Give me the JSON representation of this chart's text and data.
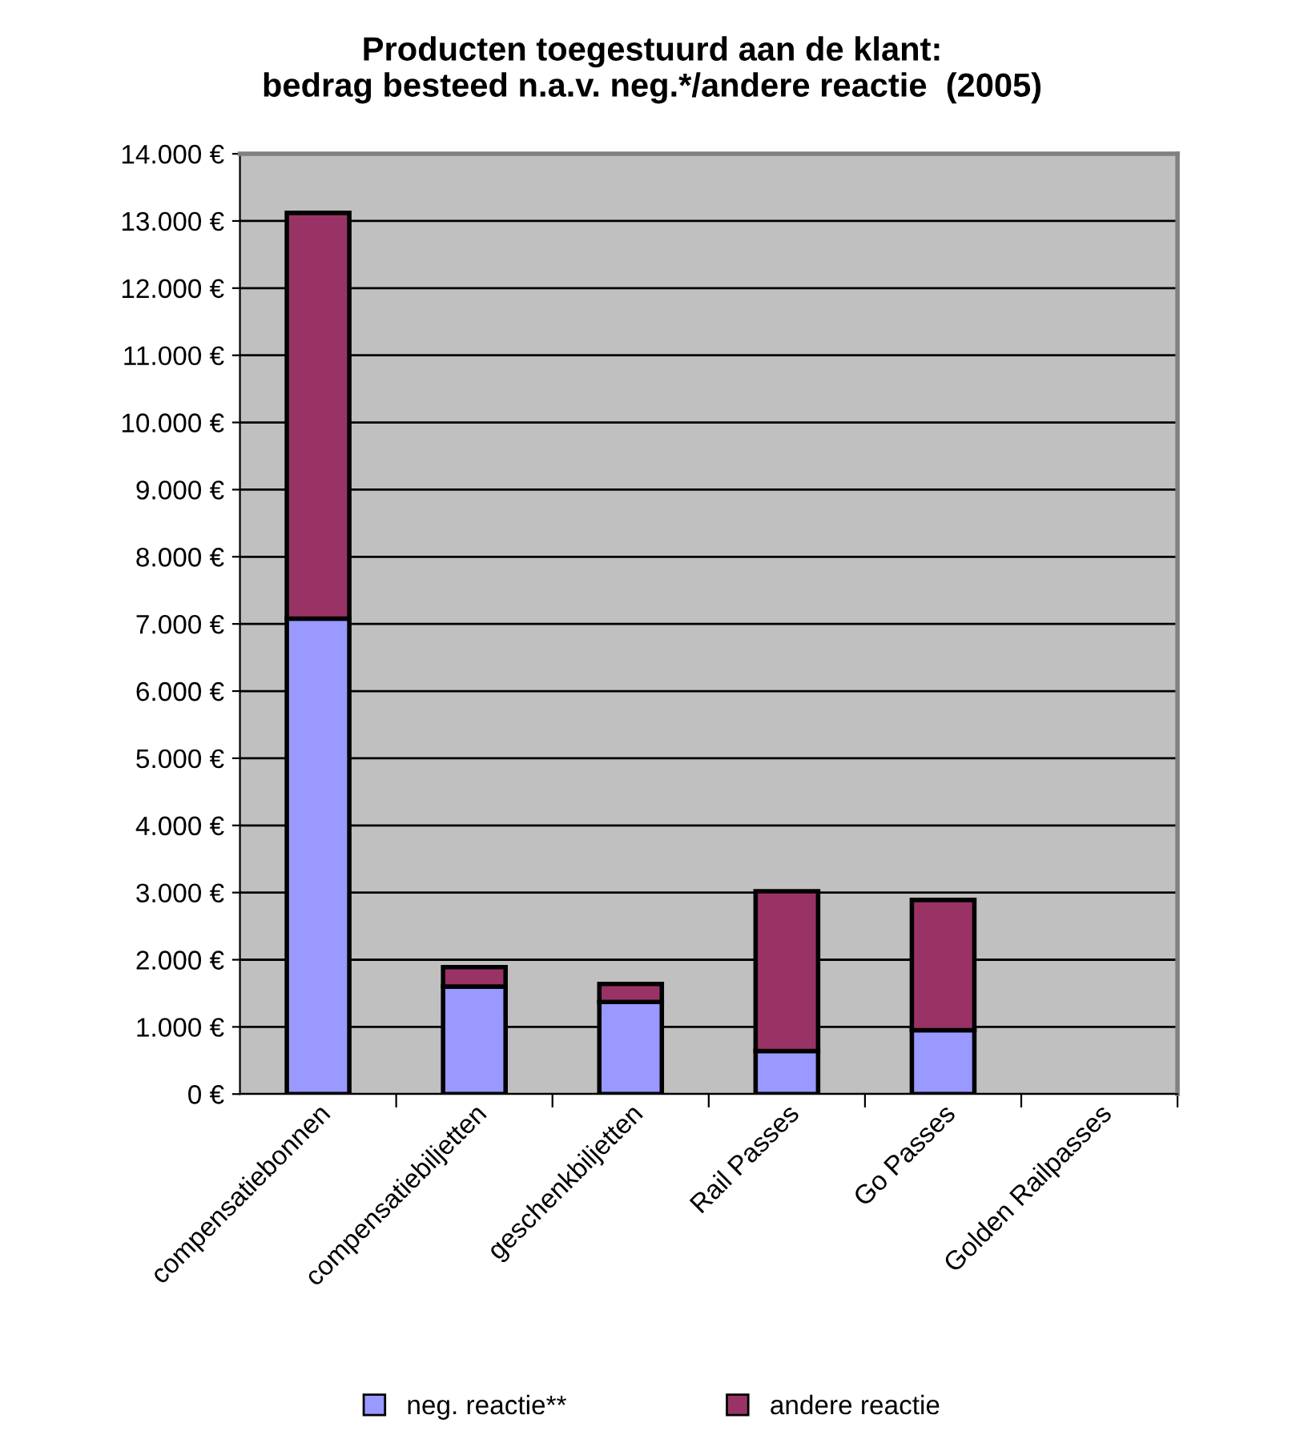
{
  "chart_data": {
    "type": "bar",
    "stacked": true,
    "title": "Producten toegestuurd aan de klant:\nbedrag besteed n.a.v. neg.*/andere reactie  (2005)",
    "categories": [
      "compensatiebonnen",
      "compensatiebiljetten",
      "geschenkbiljetten",
      "Rail Passes",
      "Go Passes",
      "Golden Railpasses"
    ],
    "series": [
      {
        "name": "neg. reactie**",
        "color": "#9999ff",
        "values": [
          7080,
          1600,
          1370,
          640,
          950,
          0
        ]
      },
      {
        "name": "andere reactie",
        "color": "#993366",
        "values": [
          6040,
          290,
          270,
          2380,
          1940,
          0
        ]
      }
    ],
    "ylim": [
      0,
      14000
    ],
    "yticks": [
      {
        "value": 0,
        "label": "0 €"
      },
      {
        "value": 1000,
        "label": "1.000 €"
      },
      {
        "value": 2000,
        "label": "2.000 €"
      },
      {
        "value": 3000,
        "label": "3.000 €"
      },
      {
        "value": 4000,
        "label": "4.000 €"
      },
      {
        "value": 5000,
        "label": "5.000 €"
      },
      {
        "value": 6000,
        "label": "6.000 €"
      },
      {
        "value": 7000,
        "label": "7.000 €"
      },
      {
        "value": 8000,
        "label": "8.000 €"
      },
      {
        "value": 9000,
        "label": "9.000 €"
      },
      {
        "value": 10000,
        "label": "10.000 €"
      },
      {
        "value": 11000,
        "label": "11.000 €"
      },
      {
        "value": 12000,
        "label": "12.000 €"
      },
      {
        "value": 13000,
        "label": "13.000 €"
      },
      {
        "value": 14000,
        "label": "14.000 €"
      }
    ],
    "grid": "y",
    "legend": "bottom"
  }
}
